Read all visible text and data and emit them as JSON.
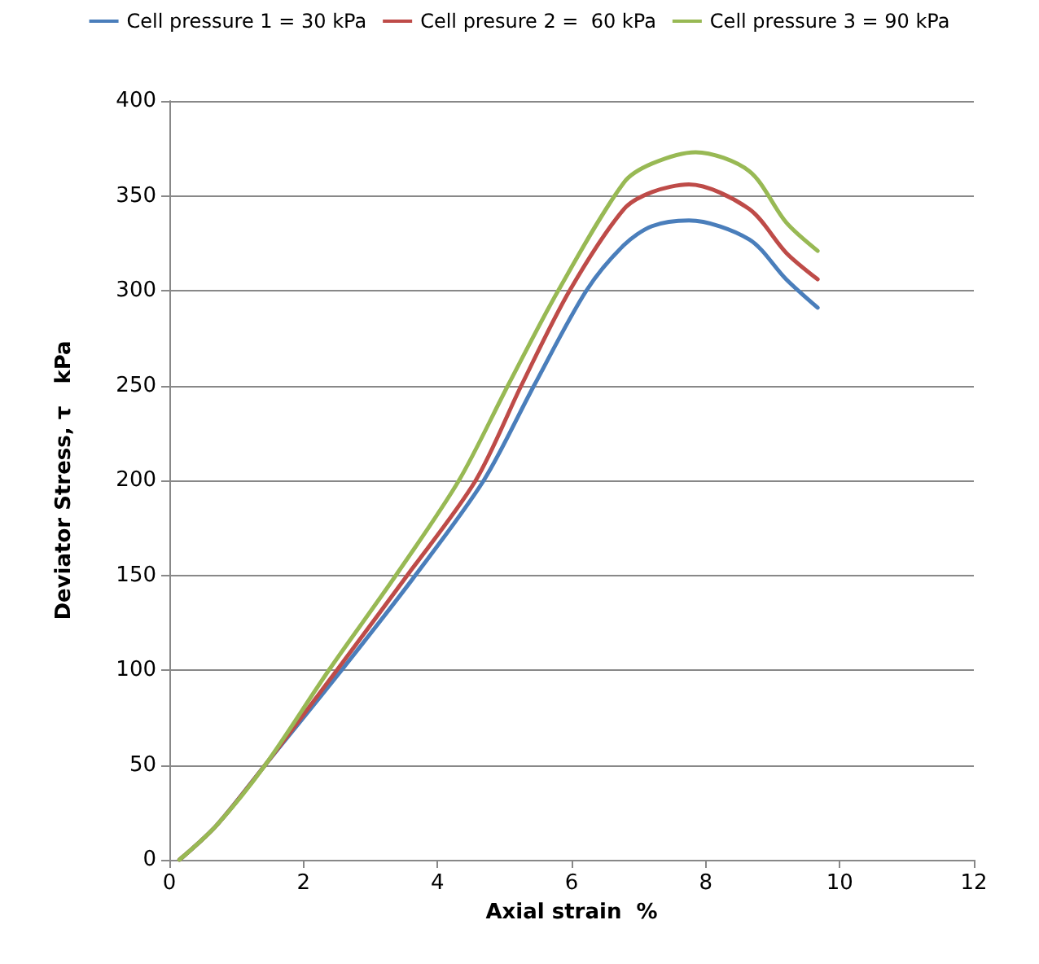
{
  "chart_data": {
    "type": "line",
    "xlabel": "Axial strain  %",
    "ylabel": "Deviator Stress, τ   kPa",
    "xlim": [
      0,
      12
    ],
    "xticks": [
      0,
      2,
      4,
      6,
      8,
      10,
      12
    ],
    "ylim": [
      0,
      400
    ],
    "yticks": [
      0,
      50,
      100,
      150,
      200,
      250,
      300,
      350,
      400
    ],
    "grid": "y",
    "legend": "top",
    "marker": "none",
    "line_style": "solid",
    "series": [
      {
        "name": "Cell pressure 1 = 30 kPa",
        "color": "#4a7ebb",
        "x": [
          0.15,
          0.7,
          1.43,
          2.57,
          3.67,
          4.69,
          5.44,
          6.22,
          6.78,
          7.2,
          7.75,
          8.65,
          9.2,
          9.67
        ],
        "values": [
          0,
          18,
          50,
          100,
          150,
          200,
          250,
          300,
          324,
          334,
          337,
          327,
          306,
          291
        ]
      },
      {
        "name": "Cell presure 2 =  60 kPa",
        "color": "#be4b48",
        "x": [
          0.15,
          0.7,
          1.43,
          2.5,
          3.55,
          4.57,
          5.25,
          5.97,
          6.78,
          7.2,
          7.75,
          8.65,
          9.2,
          9.67
        ],
        "values": [
          0,
          18,
          50,
          100,
          150,
          200,
          250,
          300,
          343,
          352,
          356,
          343,
          320,
          306
        ]
      },
      {
        "name": "Cell pressure 3 = 90 kPa",
        "color": "#98b954",
        "x": [
          0.15,
          0.7,
          1.43,
          2.38,
          3.38,
          4.32,
          5.05,
          5.8,
          6.78,
          7.2,
          7.85,
          8.65,
          9.2,
          9.67
        ],
        "values": [
          0,
          18,
          50,
          100,
          150,
          200,
          250,
          300,
          357,
          367,
          373,
          363,
          336,
          321
        ]
      }
    ]
  }
}
